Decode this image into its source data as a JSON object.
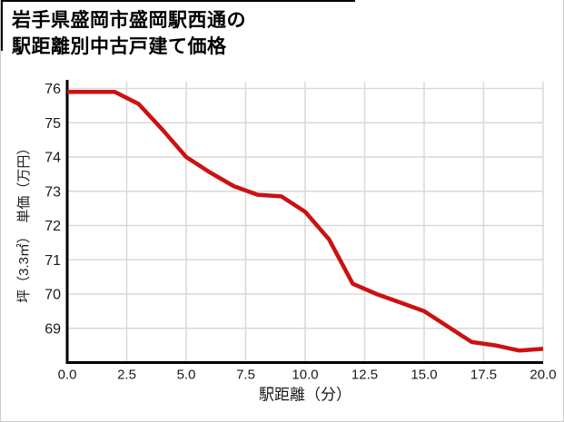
{
  "title": {
    "line1": "岩手県盛岡市盛岡駅西通の",
    "line2": "駅距離別中古戸建て価格"
  },
  "chart_data": {
    "type": "line",
    "title": "岩手県盛岡市盛岡駅西通の駅距離別中古戸建て価格",
    "xlabel": "駅距離（分）",
    "ylabel": "坪（3.3㎡）　単価（万円）",
    "x": [
      0,
      1,
      2,
      3,
      4,
      5,
      6,
      7,
      8,
      9,
      10,
      11,
      12,
      13,
      14,
      15,
      16,
      17,
      18,
      19,
      20
    ],
    "values": [
      75.9,
      75.9,
      75.9,
      75.55,
      74.8,
      74.0,
      73.55,
      73.15,
      72.9,
      72.85,
      72.4,
      71.6,
      70.3,
      70.0,
      69.75,
      69.5,
      69.05,
      68.6,
      68.5,
      68.35,
      68.4
    ],
    "x_tick_labels": [
      "0.0",
      "2.5",
      "5.0",
      "7.5",
      "10.0",
      "12.5",
      "15.0",
      "17.5",
      "20.0"
    ],
    "x_tick_values": [
      0,
      2.5,
      5,
      7.5,
      10,
      12.5,
      15,
      17.5,
      20
    ],
    "y_tick_labels": [
      "76",
      "75",
      "74",
      "73",
      "72",
      "71",
      "70",
      "69"
    ],
    "y_tick_values": [
      76,
      75,
      74,
      73,
      72,
      71,
      70,
      69
    ],
    "xlim": [
      0,
      20
    ],
    "ylim": [
      68.0,
      76.2
    ],
    "grid": true,
    "legend": false,
    "line_color": "#cc1111",
    "grid_color": "#d9d9d9",
    "axis_color": "#000000",
    "tick_label_color": "#1a1a1a"
  }
}
